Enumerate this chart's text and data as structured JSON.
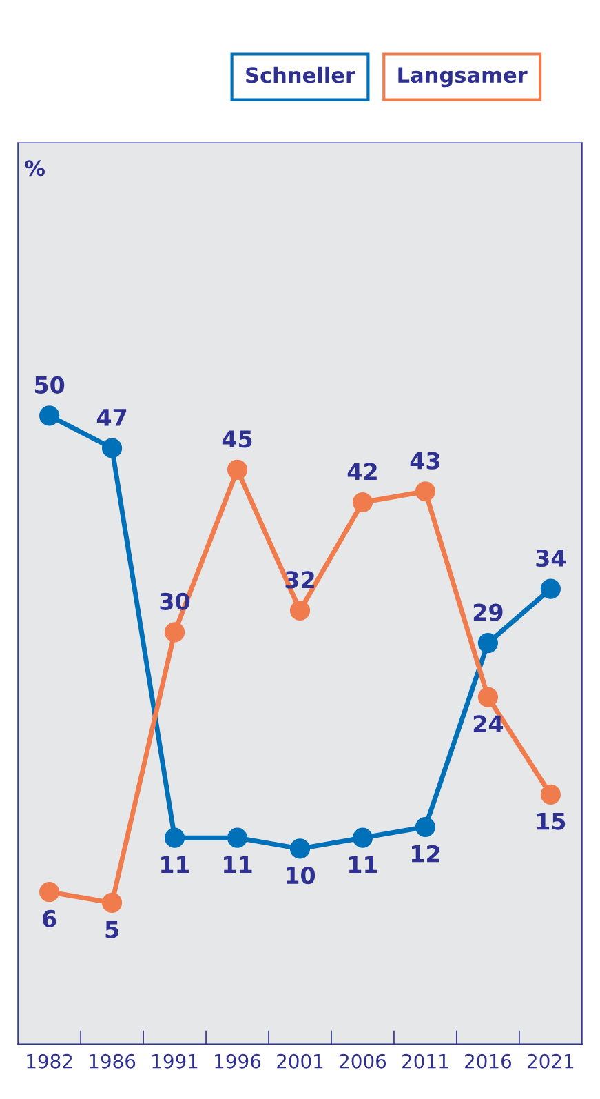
{
  "chart_data": {
    "type": "line",
    "annotations": [
      "%"
    ],
    "categories": [
      "1982",
      "1986",
      "1991",
      "1996",
      "2001",
      "2006",
      "2011",
      "2016",
      "2021"
    ],
    "series": [
      {
        "name": "Schneller",
        "color": "#0070b8",
        "values": [
          50,
          47,
          11,
          11,
          10,
          11,
          12,
          29,
          34
        ]
      },
      {
        "name": "Langsamer",
        "color": "#f07c4e",
        "values": [
          6,
          5,
          30,
          45,
          32,
          42,
          43,
          24,
          15
        ]
      }
    ],
    "data_labels": true,
    "legend": "top",
    "marker": "circle",
    "line_style": "solid",
    "grid": false
  }
}
